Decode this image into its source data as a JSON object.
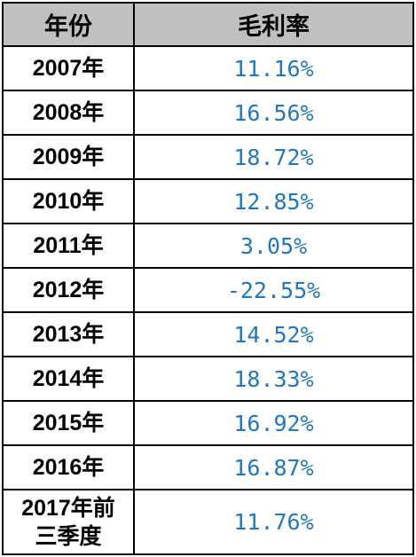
{
  "table": {
    "header": [
      "年份",
      "毛利率"
    ],
    "rows": [
      [
        "2007年",
        "11.16%"
      ],
      [
        "2008年",
        "16.56%"
      ],
      [
        "2009年",
        "18.72%"
      ],
      [
        "2010年",
        "12.85%"
      ],
      [
        "2011年",
        "3.05%"
      ],
      [
        "2012年",
        "-22.55%"
      ],
      [
        "2013年",
        "14.52%"
      ],
      [
        "2014年",
        "18.33%"
      ],
      [
        "2015年",
        "16.92%"
      ],
      [
        "2016年",
        "16.87%"
      ],
      [
        "2017年前三季度",
        "11.76%"
      ]
    ]
  }
}
